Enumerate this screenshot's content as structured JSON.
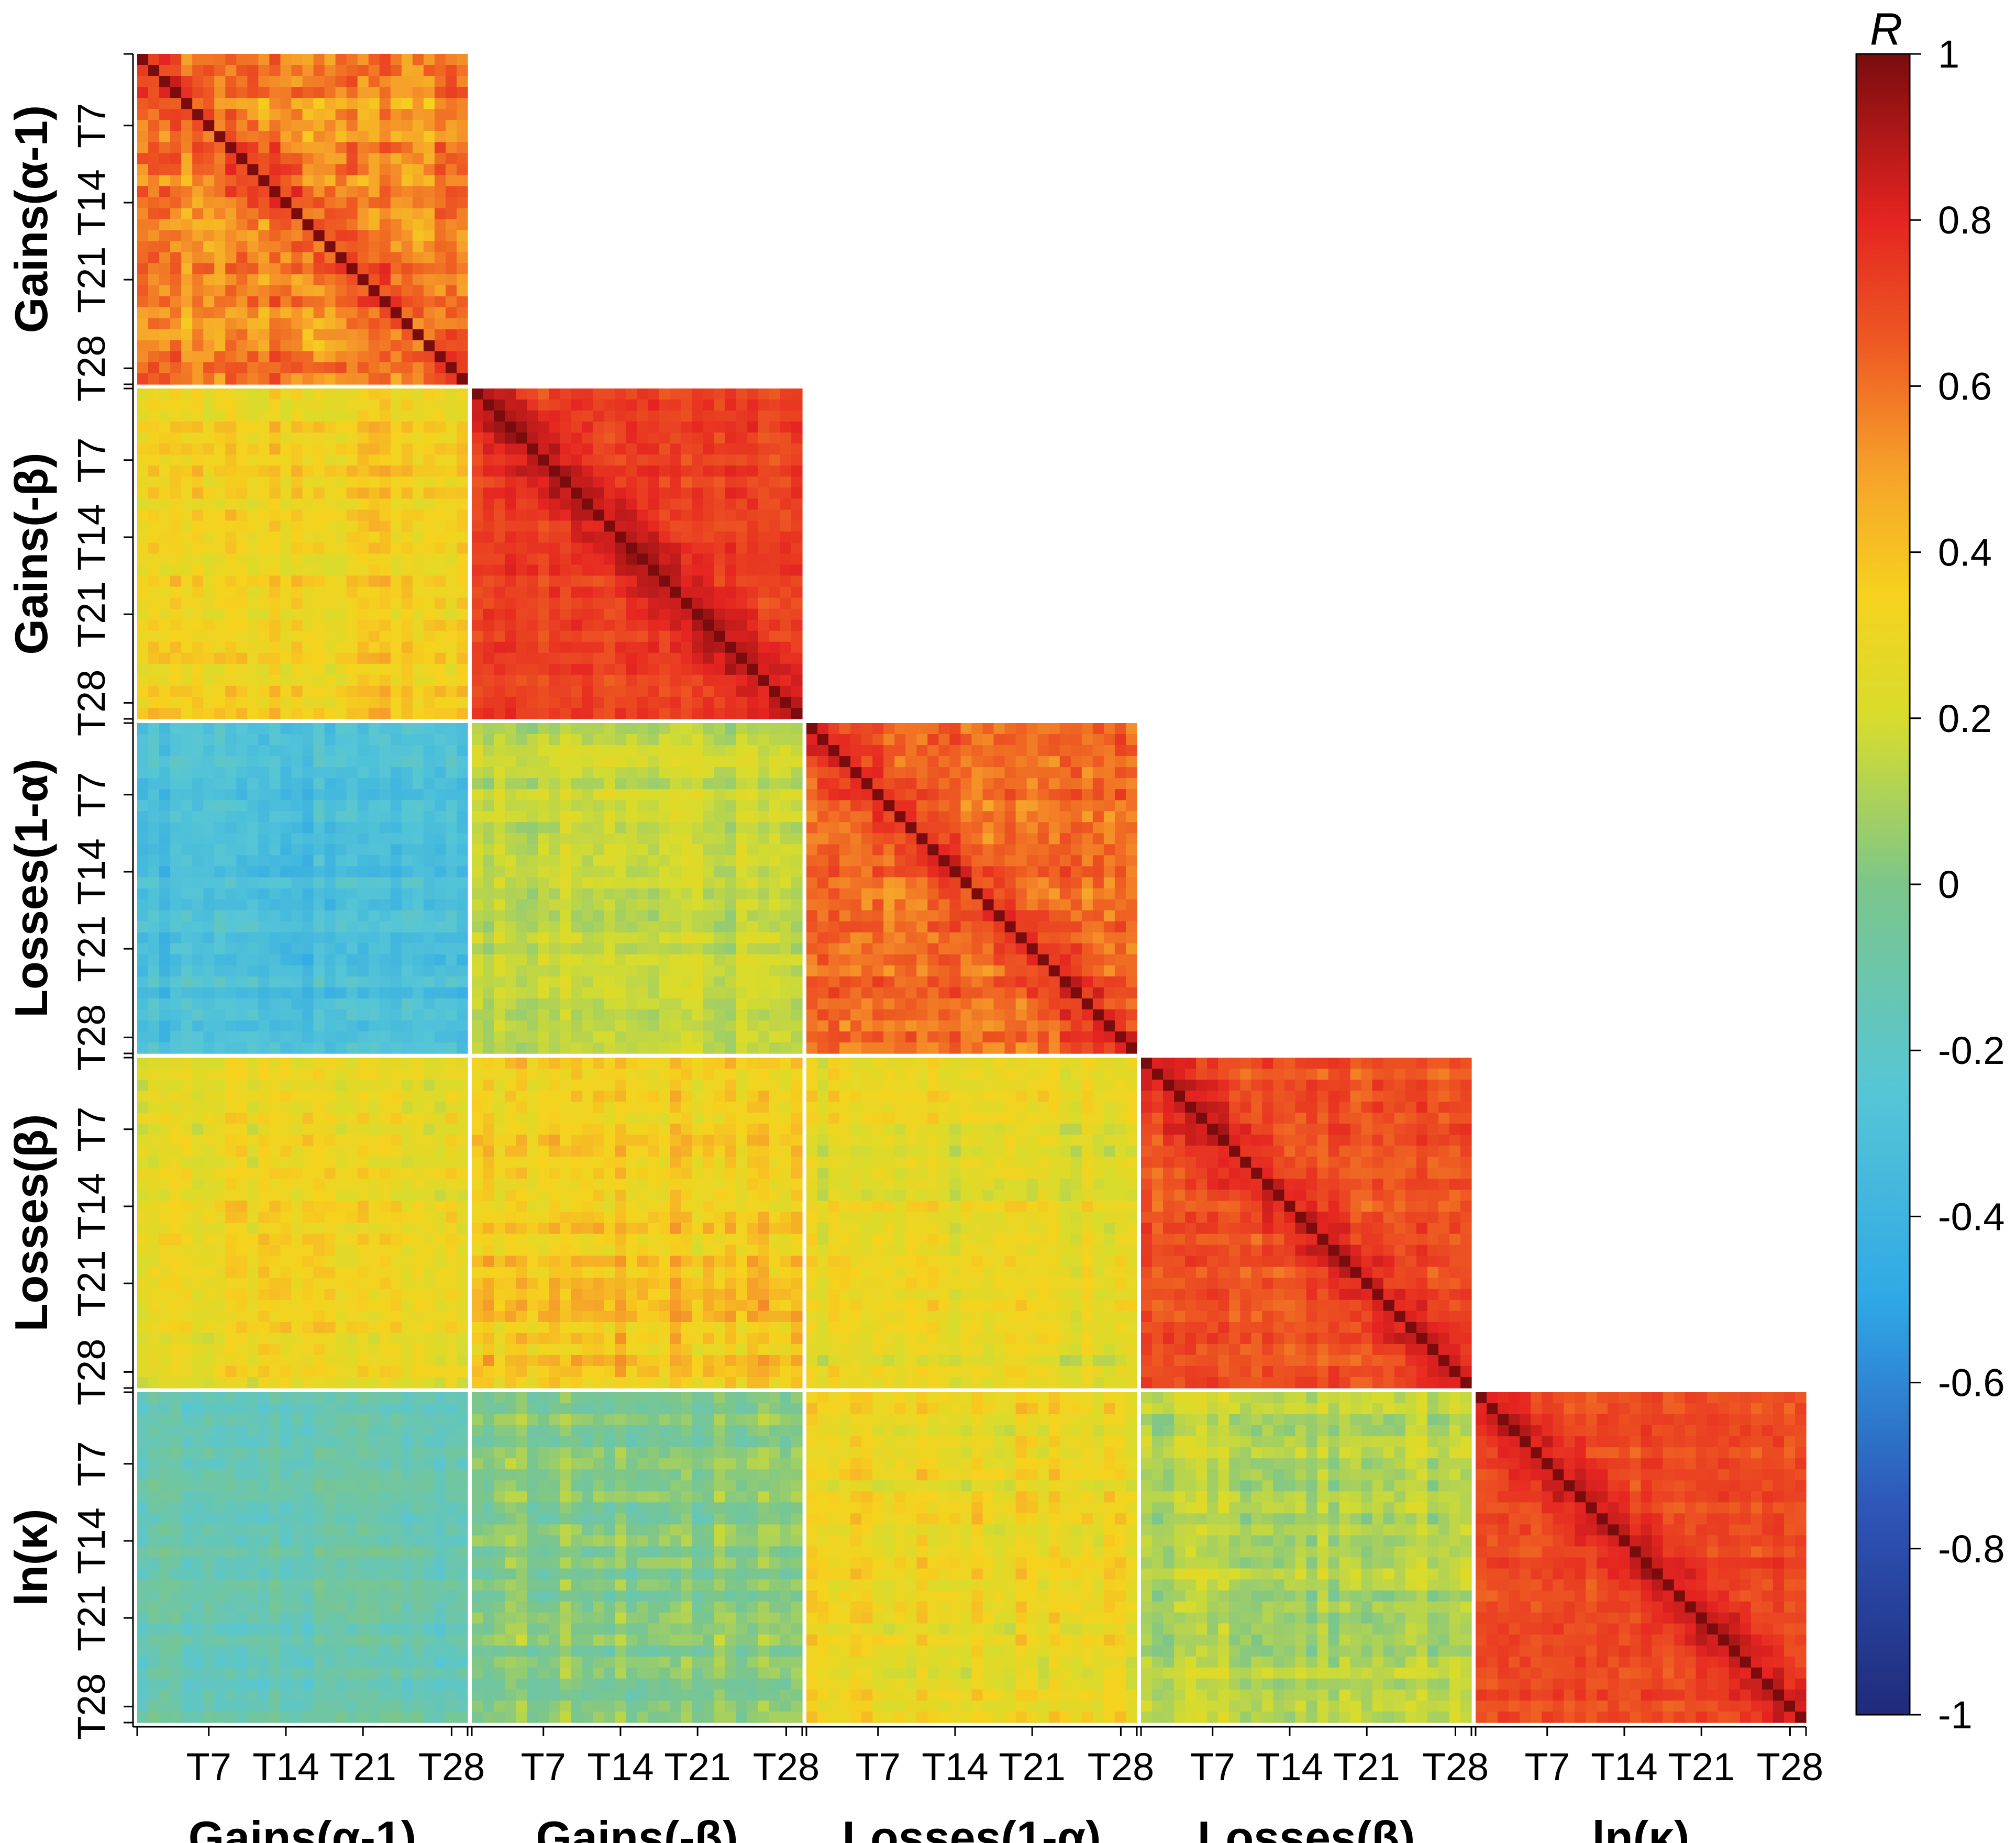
{
  "chart_data": {
    "type": "heatmap",
    "description_matrix": "Lower-triangular 5x5 block correlation matrix; each block is a 30x30 session-by-session (T1..T30) correlation grid.",
    "parameters": [
      {
        "label": "Gains(α-1)"
      },
      {
        "label": "Gains(-β)"
      },
      {
        "label": "Losses(1-α)"
      },
      {
        "label": "Losses(β)"
      },
      {
        "label": "ln(κ)"
      }
    ],
    "sessions_per_block": 30,
    "tick_labels": [
      "T7",
      "T14",
      "T21",
      "T28"
    ],
    "tick_session_index": [
      7,
      14,
      21,
      28
    ],
    "blocks": [
      {
        "row": 0,
        "col": 0,
        "mean_r": 0.55,
        "spread": 0.22
      },
      {
        "row": 1,
        "col": 0,
        "mean_r": 0.34,
        "spread": 0.12
      },
      {
        "row": 1,
        "col": 1,
        "mean_r": 0.72,
        "spread": 0.1
      },
      {
        "row": 2,
        "col": 0,
        "mean_r": -0.32,
        "spread": 0.12
      },
      {
        "row": 2,
        "col": 1,
        "mean_r": 0.16,
        "spread": 0.1
      },
      {
        "row": 2,
        "col": 2,
        "mean_r": 0.62,
        "spread": 0.16
      },
      {
        "row": 3,
        "col": 0,
        "mean_r": 0.28,
        "spread": 0.12
      },
      {
        "row": 3,
        "col": 1,
        "mean_r": 0.38,
        "spread": 0.14
      },
      {
        "row": 3,
        "col": 2,
        "mean_r": 0.26,
        "spread": 0.12
      },
      {
        "row": 3,
        "col": 3,
        "mean_r": 0.68,
        "spread": 0.12
      },
      {
        "row": 4,
        "col": 0,
        "mean_r": -0.12,
        "spread": 0.1
      },
      {
        "row": 4,
        "col": 1,
        "mean_r": 0.02,
        "spread": 0.12
      },
      {
        "row": 4,
        "col": 2,
        "mean_r": 0.3,
        "spread": 0.12
      },
      {
        "row": 4,
        "col": 3,
        "mean_r": 0.12,
        "spread": 0.12
      },
      {
        "row": 4,
        "col": 4,
        "mean_r": 0.7,
        "spread": 0.1
      }
    ],
    "diagonal_value": 1,
    "colorbar": {
      "title": "R",
      "min": -1,
      "max": 1,
      "ticks": [
        "1",
        "0.8",
        "0.6",
        "0.4",
        "0.2",
        "0",
        "-0.2",
        "-0.4",
        "-0.6",
        "-0.8",
        "-1"
      ],
      "tick_values": [
        1,
        0.8,
        0.6,
        0.4,
        0.2,
        0,
        -0.2,
        -0.4,
        -0.6,
        -0.8,
        -1
      ],
      "colormap": "jet"
    },
    "colormap_stops": [
      {
        "v": -1.0,
        "color": "#1f2a7a"
      },
      {
        "v": -0.75,
        "color": "#2e56b8"
      },
      {
        "v": -0.5,
        "color": "#2fa8e6"
      },
      {
        "v": -0.25,
        "color": "#56c6d6"
      },
      {
        "v": 0.0,
        "color": "#7cc68a"
      },
      {
        "v": 0.2,
        "color": "#d8dc2c"
      },
      {
        "v": 0.35,
        "color": "#f6d21e"
      },
      {
        "v": 0.5,
        "color": "#f6a02a"
      },
      {
        "v": 0.65,
        "color": "#ee5a22"
      },
      {
        "v": 0.8,
        "color": "#e52421"
      },
      {
        "v": 1.0,
        "color": "#7a0c0e"
      }
    ]
  }
}
